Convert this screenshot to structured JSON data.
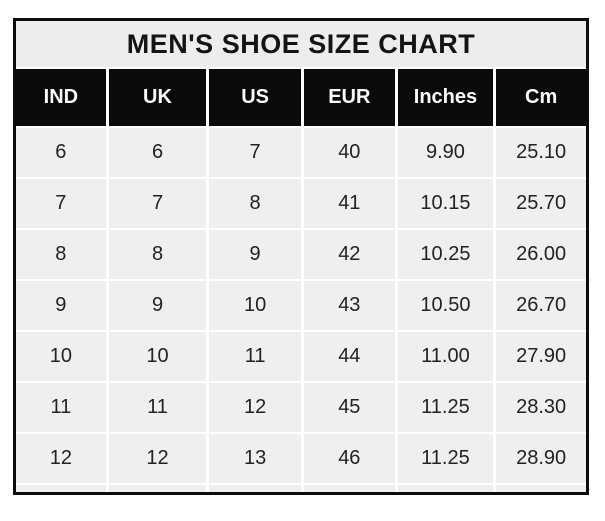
{
  "title": "MEN'S SHOE SIZE CHART",
  "colors": {
    "page_bg": "#ffffff",
    "outer_border": "#0c0c0c",
    "title_bg": "#ededed",
    "header_bg": "#0a0a0a",
    "header_text": "#fbfbfb",
    "cell_bg": "#efefef",
    "cell_text": "#222222",
    "gridline": "#ffffff"
  },
  "chart_data": {
    "type": "table",
    "title": "MEN'S SHOE SIZE CHART",
    "columns": [
      "IND",
      "UK",
      "US",
      "EUR",
      "Inches",
      "Cm"
    ],
    "rows": [
      [
        "6",
        "6",
        "7",
        "40",
        "9.90",
        "25.10"
      ],
      [
        "7",
        "7",
        "8",
        "41",
        "10.15",
        "25.70"
      ],
      [
        "8",
        "8",
        "9",
        "42",
        "10.25",
        "26.00"
      ],
      [
        "9",
        "9",
        "10",
        "43",
        "10.50",
        "26.70"
      ],
      [
        "10",
        "10",
        "11",
        "44",
        "11.00",
        "27.90"
      ],
      [
        "11",
        "11",
        "12",
        "45",
        "11.25",
        "28.30"
      ],
      [
        "12",
        "12",
        "13",
        "46",
        "11.25",
        "28.90"
      ]
    ]
  }
}
